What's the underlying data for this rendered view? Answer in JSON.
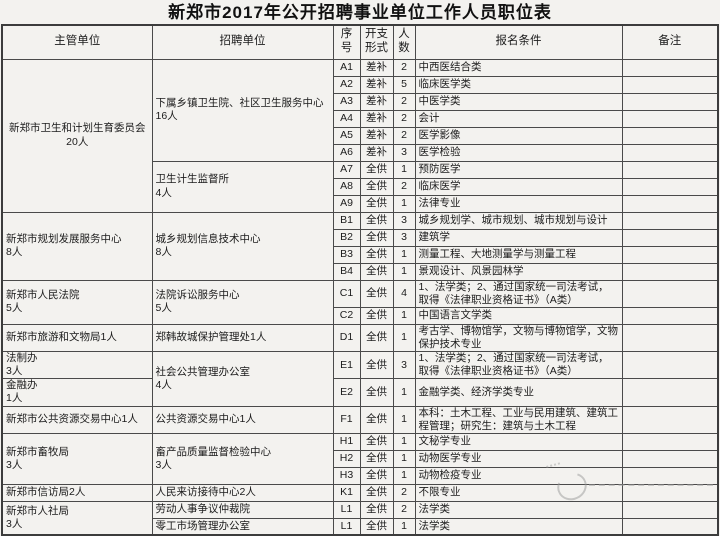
{
  "title": "新郑市2017年公开招聘事业单位工作人员职位表",
  "table": {
    "headers": [
      "主管单位",
      "招聘单位",
      "序\n号",
      "开支\n形式",
      "人\n数",
      "报名条件",
      "备注"
    ],
    "rows": [
      {
        "cells": [
          {
            "t": "新郑市卫生和计划生育委员会\n20人",
            "rs": 9,
            "al": "c"
          },
          {
            "t": "下属乡镇卫生院、社区卫生服务中心\n16人",
            "rs": 6,
            "al": "l"
          },
          {
            "t": "A1"
          },
          {
            "t": "差补"
          },
          {
            "t": "2"
          },
          {
            "t": "中西医结合类",
            "al": "l"
          },
          {
            "t": ""
          }
        ]
      },
      {
        "cells": [
          {
            "t": "A2"
          },
          {
            "t": "差补"
          },
          {
            "t": "5"
          },
          {
            "t": "临床医学类",
            "al": "l"
          },
          {
            "t": ""
          }
        ]
      },
      {
        "cells": [
          {
            "t": "A3"
          },
          {
            "t": "差补"
          },
          {
            "t": "2"
          },
          {
            "t": "中医学类",
            "al": "l"
          },
          {
            "t": ""
          }
        ]
      },
      {
        "cells": [
          {
            "t": "A4"
          },
          {
            "t": "差补"
          },
          {
            "t": "2"
          },
          {
            "t": "会计",
            "al": "l"
          },
          {
            "t": ""
          }
        ]
      },
      {
        "cells": [
          {
            "t": "A5"
          },
          {
            "t": "差补"
          },
          {
            "t": "2"
          },
          {
            "t": "医学影像",
            "al": "l"
          },
          {
            "t": ""
          }
        ]
      },
      {
        "cells": [
          {
            "t": "A6"
          },
          {
            "t": "差补"
          },
          {
            "t": "3"
          },
          {
            "t": "医学检验",
            "al": "l"
          },
          {
            "t": ""
          }
        ]
      },
      {
        "cells": [
          {
            "t": "卫生计生监督所\n4人",
            "rs": 3,
            "al": "l"
          },
          {
            "t": "A7"
          },
          {
            "t": "全供"
          },
          {
            "t": "1"
          },
          {
            "t": "预防医学",
            "al": "l"
          },
          {
            "t": ""
          }
        ]
      },
      {
        "cells": [
          {
            "t": "A8"
          },
          {
            "t": "全供"
          },
          {
            "t": "2"
          },
          {
            "t": "临床医学",
            "al": "l"
          },
          {
            "t": ""
          }
        ]
      },
      {
        "cells": [
          {
            "t": "A9"
          },
          {
            "t": "全供"
          },
          {
            "t": "1"
          },
          {
            "t": "法律专业",
            "al": "l"
          },
          {
            "t": ""
          }
        ]
      },
      {
        "cells": [
          {
            "t": "新郑市规划发展服务中心\n8人",
            "rs": 4,
            "al": "l"
          },
          {
            "t": "城乡规划信息技术中心\n8人",
            "rs": 4,
            "al": "l"
          },
          {
            "t": "B1"
          },
          {
            "t": "全供"
          },
          {
            "t": "3"
          },
          {
            "t": "城乡规划学、城市规划、城市规划与设计",
            "al": "l"
          },
          {
            "t": ""
          }
        ]
      },
      {
        "cells": [
          {
            "t": "B2"
          },
          {
            "t": "全供"
          },
          {
            "t": "3"
          },
          {
            "t": "建筑学",
            "al": "l"
          },
          {
            "t": ""
          }
        ]
      },
      {
        "cells": [
          {
            "t": "B3"
          },
          {
            "t": "全供"
          },
          {
            "t": "1"
          },
          {
            "t": "测量工程、大地测量学与测量工程",
            "al": "l"
          },
          {
            "t": ""
          }
        ]
      },
      {
        "cells": [
          {
            "t": "B4"
          },
          {
            "t": "全供"
          },
          {
            "t": "1"
          },
          {
            "t": "景观设计、风景园林学",
            "al": "l"
          },
          {
            "t": ""
          }
        ]
      },
      {
        "cells": [
          {
            "t": "新郑市人民法院\n5人",
            "rs": 2,
            "al": "l"
          },
          {
            "t": "法院诉讼服务中心\n5人",
            "rs": 2,
            "al": "l"
          },
          {
            "t": "C1"
          },
          {
            "t": "全供"
          },
          {
            "t": "4"
          },
          {
            "t": "1、法学类；2、通过国家统一司法考试，取得《法律职业资格证书》（A类）",
            "al": "l"
          },
          {
            "t": ""
          }
        ]
      },
      {
        "cells": [
          {
            "t": "C2"
          },
          {
            "t": "全供"
          },
          {
            "t": "1"
          },
          {
            "t": "中国语言文学类",
            "al": "l"
          },
          {
            "t": ""
          }
        ]
      },
      {
        "cells": [
          {
            "t": "新郑市旅游和文物局1人",
            "al": "l"
          },
          {
            "t": "郑韩故城保护管理处1人",
            "al": "l"
          },
          {
            "t": "D1"
          },
          {
            "t": "全供"
          },
          {
            "t": "1"
          },
          {
            "t": "考古学、博物馆学，文物与博物馆学，文物保护技术专业",
            "al": "l"
          },
          {
            "t": ""
          }
        ]
      },
      {
        "cells": [
          {
            "t": "法制办\n3人",
            "al": "l"
          },
          {
            "t": "社会公共管理办公室\n4人",
            "rs": 2,
            "al": "l"
          },
          {
            "t": "E1"
          },
          {
            "t": "全供"
          },
          {
            "t": "3"
          },
          {
            "t": "1、法学类；2、通过国家统一司法考试，取得《法律职业资格证书》（A类）",
            "al": "l"
          },
          {
            "t": ""
          }
        ]
      },
      {
        "cells": [
          {
            "t": "金融办\n1人",
            "al": "l"
          },
          {
            "t": "E2"
          },
          {
            "t": "全供"
          },
          {
            "t": "1"
          },
          {
            "t": "金融学类、经济学类专业",
            "al": "l"
          },
          {
            "t": ""
          }
        ]
      },
      {
        "cells": [
          {
            "t": "新郑市公共资源交易中心1人",
            "al": "l"
          },
          {
            "t": "公共资源交易中心1人",
            "al": "l"
          },
          {
            "t": "F1"
          },
          {
            "t": "全供"
          },
          {
            "t": "1"
          },
          {
            "t": "本科：土木工程、工业与民用建筑、建筑工程管理；研究生：建筑与土木工程",
            "al": "l"
          },
          {
            "t": ""
          }
        ]
      },
      {
        "cells": [
          {
            "t": "新郑市畜牧局\n3人",
            "rs": 3,
            "al": "l"
          },
          {
            "t": "畜产品质量监督检验中心\n3人",
            "rs": 3,
            "al": "l"
          },
          {
            "t": "H1"
          },
          {
            "t": "全供"
          },
          {
            "t": "1"
          },
          {
            "t": "文秘学专业",
            "al": "l"
          },
          {
            "t": ""
          }
        ]
      },
      {
        "cells": [
          {
            "t": "H2"
          },
          {
            "t": "全供"
          },
          {
            "t": "1"
          },
          {
            "t": "动物医学专业",
            "al": "l"
          },
          {
            "t": ""
          }
        ]
      },
      {
        "cells": [
          {
            "t": "H3"
          },
          {
            "t": "全供"
          },
          {
            "t": "1"
          },
          {
            "t": "动物检疫专业",
            "al": "l"
          },
          {
            "t": ""
          }
        ]
      },
      {
        "cells": [
          {
            "t": "新郑市信访局2人",
            "al": "l"
          },
          {
            "t": "人民来访接待中心2人",
            "al": "l"
          },
          {
            "t": "K1"
          },
          {
            "t": "全供"
          },
          {
            "t": "2"
          },
          {
            "t": "不限专业",
            "al": "l"
          },
          {
            "t": ""
          }
        ]
      },
      {
        "cells": [
          {
            "t": "新郑市人社局\n3人",
            "rs": 2,
            "al": "l"
          },
          {
            "t": "劳动人事争议仲裁院",
            "al": "l"
          },
          {
            "t": "L1"
          },
          {
            "t": "全供"
          },
          {
            "t": "2"
          },
          {
            "t": "法学类",
            "al": "l"
          },
          {
            "t": ""
          }
        ]
      },
      {
        "cells": [
          {
            "t": "零工市场管理办公室",
            "al": "l"
          },
          {
            "t": "L1"
          },
          {
            "t": "全供"
          },
          {
            "t": "1"
          },
          {
            "t": "法学类",
            "al": "l"
          },
          {
            "t": ""
          }
        ]
      }
    ]
  },
  "colors": {
    "paper_background": "#f3f2ef",
    "grid_line": "#4a4a4a",
    "text": "#1c1c1c",
    "watermark": "#9b9b9b"
  },
  "watermark": {
    "description": "faint circular stamp with dashed line"
  }
}
